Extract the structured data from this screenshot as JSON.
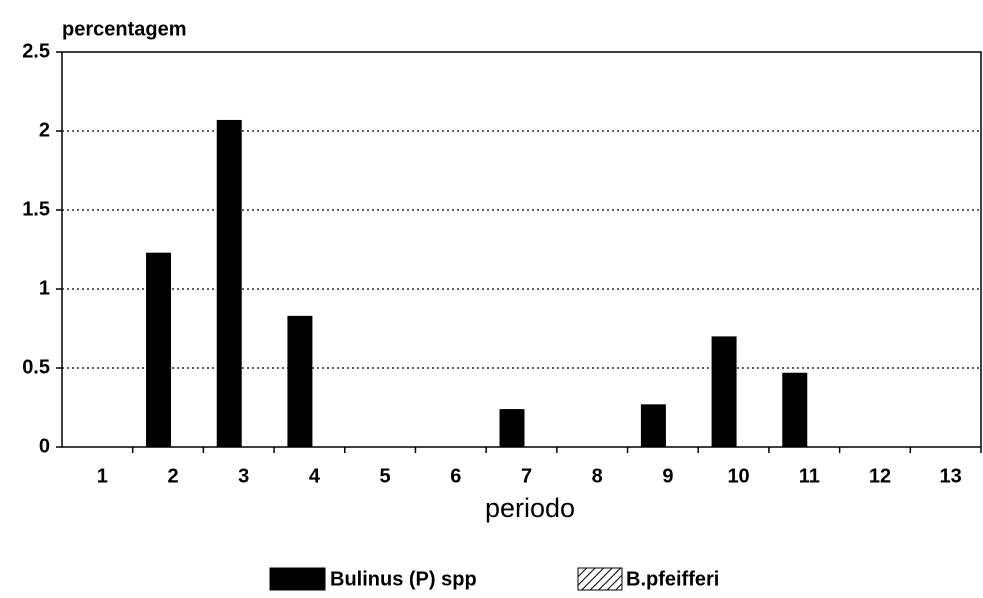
{
  "chart_data": {
    "type": "bar",
    "y_label": "percentagem",
    "x_label": "periodo",
    "categories": [
      "1",
      "2",
      "3",
      "4",
      "5",
      "6",
      "7",
      "8",
      "9",
      "10",
      "11",
      "12",
      "13"
    ],
    "series": [
      {
        "name": "Bulinus (P) spp",
        "color": "#000000",
        "values": [
          0,
          1.23,
          2.07,
          0.83,
          0,
          0,
          0.24,
          0,
          0.27,
          0.7,
          0.47,
          0,
          0
        ]
      },
      {
        "name": "B.pfeifferi",
        "color": "hatch",
        "values": [
          0,
          0,
          0,
          0,
          0,
          0,
          0,
          0,
          0,
          0,
          0,
          0,
          0
        ]
      }
    ],
    "ylim": [
      0,
      2.5
    ],
    "yticks": [
      0,
      0.5,
      1,
      1.5,
      2,
      2.5
    ],
    "grid": true
  }
}
